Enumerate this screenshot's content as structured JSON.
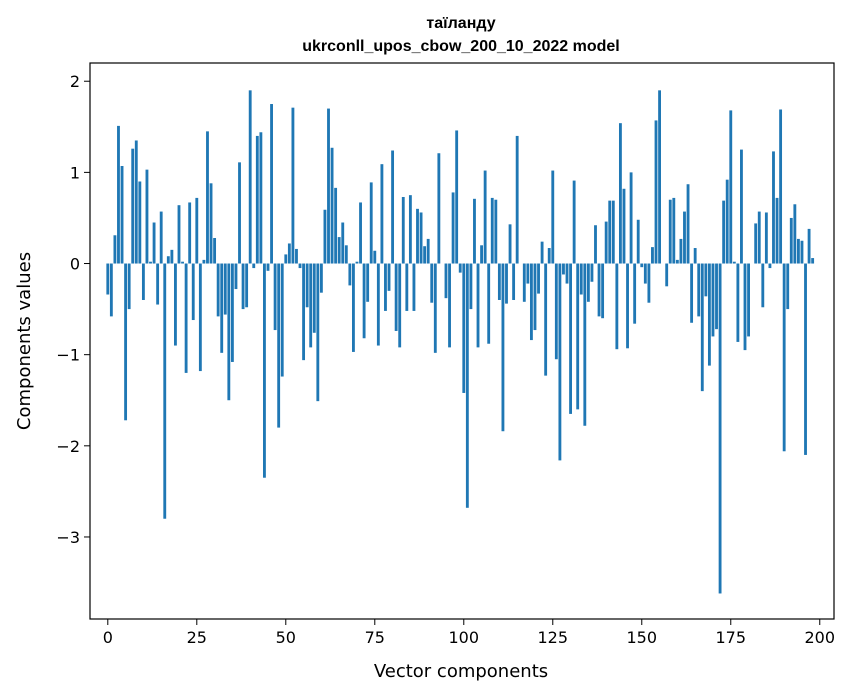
{
  "chart_data": {
    "type": "bar",
    "title": "таїланду",
    "subtitle": "ukrconll_upos_cbow_200_10_2022 model",
    "xlabel": "Vector components",
    "ylabel": "Components values",
    "xlim": [
      -5,
      204
    ],
    "ylim": [
      -3.9,
      2.2
    ],
    "xticks": [
      0,
      25,
      50,
      75,
      100,
      125,
      150,
      175,
      200
    ],
    "yticks": [
      -3,
      -2,
      -1,
      0,
      1,
      2
    ],
    "bar_color": "#1f77b4",
    "grid": false,
    "legend": "none",
    "values": [
      -0.34,
      -0.58,
      0.31,
      1.51,
      1.07,
      -1.72,
      -0.5,
      1.26,
      1.35,
      0.9,
      -0.4,
      1.03,
      0.02,
      0.45,
      -0.45,
      0.57,
      -2.8,
      0.08,
      0.15,
      -0.9,
      0.64,
      0.02,
      -1.2,
      0.67,
      -0.62,
      0.72,
      -1.18,
      0.04,
      1.45,
      0.88,
      0.28,
      -0.58,
      -0.98,
      -0.56,
      -1.5,
      -1.08,
      -0.28,
      1.11,
      -0.5,
      -0.48,
      1.9,
      -0.05,
      1.4,
      1.44,
      -2.35,
      -0.08,
      1.75,
      -0.73,
      -1.8,
      -1.24,
      0.1,
      0.22,
      1.71,
      0.16,
      -0.05,
      -1.06,
      -0.48,
      -0.92,
      -0.76,
      -1.51,
      -0.32,
      0.59,
      1.7,
      1.27,
      0.83,
      0.29,
      0.45,
      0.2,
      -0.24,
      -0.97,
      0.02,
      0.67,
      -0.82,
      -0.42,
      0.89,
      0.14,
      -0.9,
      1.09,
      -0.52,
      -0.3,
      1.24,
      -0.74,
      -0.92,
      0.73,
      -0.52,
      0.75,
      -0.52,
      0.6,
      0.56,
      0.19,
      0.27,
      -0.43,
      -0.98,
      1.21,
      0.0,
      -0.38,
      -0.92,
      0.78,
      1.46,
      -0.1,
      -1.42,
      -2.68,
      -0.5,
      0.71,
      -0.92,
      0.2,
      1.02,
      -0.88,
      0.72,
      0.7,
      -0.4,
      -1.84,
      -0.44,
      0.43,
      -0.4,
      1.4,
      0.0,
      -0.42,
      -0.22,
      -0.84,
      -0.73,
      -0.33,
      0.24,
      -1.23,
      0.17,
      1.02,
      -1.05,
      -2.16,
      -0.12,
      -0.22,
      -1.65,
      0.91,
      -1.6,
      -0.34,
      -1.78,
      -0.42,
      -0.2,
      0.42,
      -0.58,
      -0.6,
      0.46,
      0.69,
      0.69,
      -0.94,
      1.54,
      0.82,
      -0.93,
      1.0,
      -0.66,
      0.48,
      -0.04,
      -0.22,
      -0.43,
      0.18,
      1.57,
      1.9,
      0.0,
      -0.25,
      0.7,
      0.72,
      0.04,
      0.27,
      0.57,
      0.87,
      -0.65,
      0.17,
      -0.58,
      -1.4,
      -0.36,
      -1.12,
      -0.8,
      -0.72,
      -3.62,
      0.69,
      0.92,
      1.68,
      0.02,
      -0.86,
      1.25,
      -0.95,
      -0.8,
      0.0,
      0.44,
      0.57,
      -0.48,
      0.56,
      -0.05,
      1.23,
      0.72,
      1.69,
      -2.06,
      -0.5,
      0.5,
      0.65,
      0.27,
      0.25,
      -2.1,
      0.38,
      0.06,
      0.0
    ]
  }
}
